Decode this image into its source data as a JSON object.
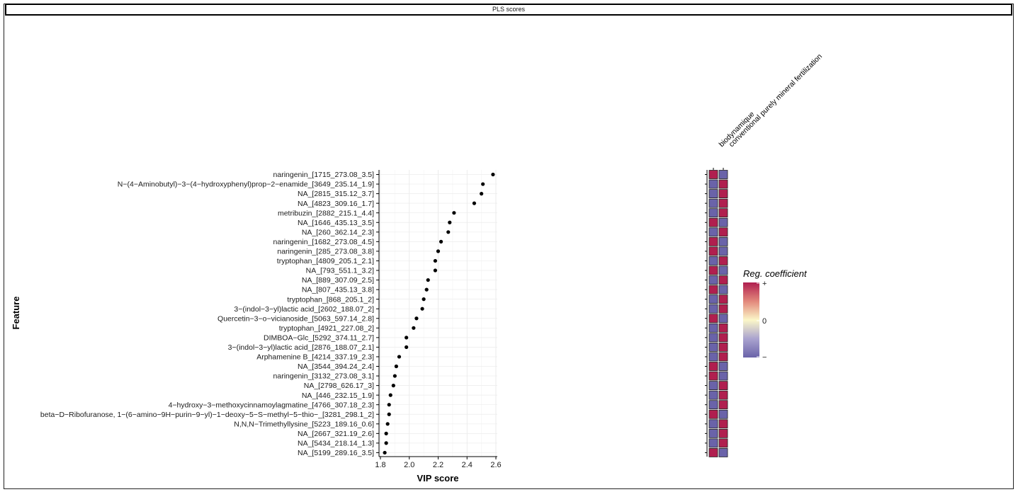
{
  "strip_title": "PLS scores",
  "chart_data": {
    "type": "scatter",
    "xlabel": "VIP score",
    "ylabel": "Feature",
    "xlim": [
      1.8,
      2.6
    ],
    "xticks": [
      "1.8",
      "2.0",
      "2.2",
      "2.4",
      "2.6"
    ],
    "grid": true,
    "features": [
      "naringenin_[1715_273.08_3.5]",
      "N−(4−Aminobutyl)−3−(4−hydroxyphenyl)prop−2−enamide_[3649_235.14_1.9]",
      "NA_[2815_315.12_3.7]",
      "NA_[4823_309.16_1.7]",
      "metribuzin_[2882_215.1_4.4]",
      "NA_[1646_435.13_3.5]",
      "NA_[260_362.14_2.3]",
      "naringenin_[1682_273.08_4.5]",
      "naringenin_[285_273.08_3.8]",
      "tryptophan_[4809_205.1_2.1]",
      "NA_[793_551.1_3.2]",
      "NA_[889_307.09_2.5]",
      "NA_[807_435.13_3.8]",
      "tryptophan_[868_205.1_2]",
      "3−(indol−3−yl)lactic acid_[2602_188.07_2]",
      "Quercetin−3−o−vicianoside_[5063_597.14_2.8]",
      "tryptophan_[4921_227.08_2]",
      "DIMBOA−Glc_[5292_374.11_2.7]",
      "3−(indol−3−yl)lactic acid_[2876_188.07_2.1]",
      "Arphamenine B_[4214_337.19_2.3]",
      "NA_[3544_394.24_2.4]",
      "naringenin_[3132_273.08_3.1]",
      "NA_[2798_626.17_3]",
      "NA_[446_232.15_1.9]",
      "4−hydroxy−3−methoxycinnamoylagmatine_[4766_307.18_2.3]",
      "beta−D−Ribofuranose, 1−(6−amino−9H−purin−9−yl)−1−deoxy−5−S−methyl−5−thio−_[3281_298.1_2]",
      "N,N,N−Trimethyllysine_[5223_189.16_0.6]",
      "NA_[2667_321.19_2.6]",
      "NA_[5434_218.14_1.3]",
      "NA_[5199_289.16_3.5]"
    ],
    "vip": [
      2.58,
      2.51,
      2.5,
      2.45,
      2.31,
      2.28,
      2.27,
      2.22,
      2.2,
      2.18,
      2.18,
      2.13,
      2.12,
      2.1,
      2.09,
      2.05,
      2.03,
      1.98,
      1.98,
      1.93,
      1.91,
      1.9,
      1.89,
      1.87,
      1.86,
      1.86,
      1.85,
      1.84,
      1.84,
      1.83
    ],
    "heatmap": {
      "columns": [
        "biodynamique",
        "conventional purely mineral fertilization"
      ],
      "signs": [
        [
          "+",
          "-"
        ],
        [
          "-",
          "+"
        ],
        [
          "-",
          "+"
        ],
        [
          "-",
          "+"
        ],
        [
          "-",
          "+"
        ],
        [
          "+",
          "-"
        ],
        [
          "-",
          "+"
        ],
        [
          "+",
          "-"
        ],
        [
          "+",
          "-"
        ],
        [
          "-",
          "+"
        ],
        [
          "+",
          "-"
        ],
        [
          "-",
          "+"
        ],
        [
          "+",
          "-"
        ],
        [
          "-",
          "+"
        ],
        [
          "-",
          "+"
        ],
        [
          "+",
          "-"
        ],
        [
          "-",
          "+"
        ],
        [
          "-",
          "+"
        ],
        [
          "-",
          "+"
        ],
        [
          "-",
          "+"
        ],
        [
          "+",
          "-"
        ],
        [
          "+",
          "-"
        ],
        [
          "-",
          "+"
        ],
        [
          "-",
          "+"
        ],
        [
          "-",
          "+"
        ],
        [
          "+",
          "-"
        ],
        [
          "-",
          "+"
        ],
        [
          "-",
          "+"
        ],
        [
          "-",
          "+"
        ],
        [
          "+",
          "-"
        ]
      ],
      "colors": {
        "positive": "#b01f4f",
        "negative": "#6a63a9",
        "zero": "#fbf7c8"
      }
    },
    "legend": {
      "title": "Reg. coefficient",
      "labels": [
        "+",
        "0",
        "−"
      ],
      "placement": "right"
    }
  }
}
